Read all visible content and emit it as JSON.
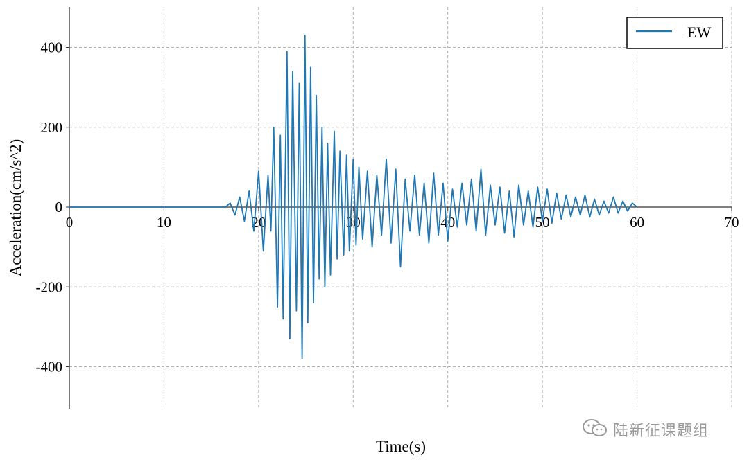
{
  "chart_data": {
    "type": "line",
    "xlabel": "Time(s)",
    "ylabel": "Acceleration(cm/s^2)",
    "xlim": [
      0,
      70
    ],
    "ylim": [
      -500,
      500
    ],
    "xticks": [
      0,
      10,
      20,
      30,
      40,
      50,
      60,
      70
    ],
    "yticks": [
      -400,
      -200,
      0,
      200,
      400
    ],
    "ytick_labels": [
      "-400",
      "-200",
      "0",
      "200",
      "400"
    ],
    "grid": true,
    "legend": "top-right",
    "series": [
      {
        "name": "EW",
        "color": "#1f77b4",
        "x": [
          0,
          16.5,
          17,
          17.5,
          18,
          18.5,
          19,
          19.5,
          20,
          20.5,
          21,
          21.3,
          21.6,
          22,
          22.3,
          22.6,
          23,
          23.3,
          23.6,
          24,
          24.3,
          24.6,
          24.9,
          25.2,
          25.5,
          25.8,
          26.1,
          26.4,
          26.7,
          27,
          27.3,
          27.6,
          28,
          28.3,
          28.6,
          29,
          29.3,
          29.6,
          30,
          30.3,
          30.6,
          31,
          31.5,
          32,
          32.5,
          33,
          33.5,
          34,
          34.5,
          35,
          35.5,
          36,
          36.5,
          37,
          37.5,
          38,
          38.5,
          39,
          39.5,
          40,
          40.5,
          41,
          41.5,
          42,
          42.5,
          43,
          43.5,
          44,
          44.5,
          45,
          45.5,
          46,
          46.5,
          47,
          47.5,
          48,
          48.5,
          49,
          49.5,
          50,
          50.5,
          51,
          51.5,
          52,
          52.5,
          53,
          53.5,
          54,
          54.5,
          55,
          55.5,
          56,
          56.5,
          57,
          57.5,
          58,
          58.5,
          59,
          59.5,
          60
        ],
        "y": [
          0,
          0,
          10,
          -20,
          25,
          -35,
          40,
          -60,
          90,
          -110,
          80,
          -60,
          200,
          -250,
          180,
          -280,
          390,
          -330,
          340,
          -260,
          310,
          -380,
          430,
          -290,
          350,
          -240,
          280,
          -180,
          200,
          -200,
          160,
          -170,
          190,
          -130,
          140,
          -120,
          130,
          -110,
          120,
          -95,
          100,
          -80,
          90,
          -100,
          80,
          -70,
          120,
          -90,
          95,
          -150,
          70,
          -60,
          80,
          -70,
          60,
          -90,
          85,
          -70,
          60,
          -85,
          45,
          -50,
          60,
          -45,
          70,
          -60,
          95,
          -70,
          55,
          -45,
          50,
          -65,
          40,
          -75,
          55,
          -45,
          40,
          -50,
          50,
          -35,
          45,
          -40,
          35,
          -30,
          30,
          -25,
          25,
          -20,
          30,
          -25,
          20,
          -20,
          15,
          -15,
          25,
          -15,
          15,
          -10,
          10,
          0
        ]
      }
    ]
  },
  "watermark": {
    "icon": "wechat-icon",
    "text": "陆新征课题组"
  }
}
